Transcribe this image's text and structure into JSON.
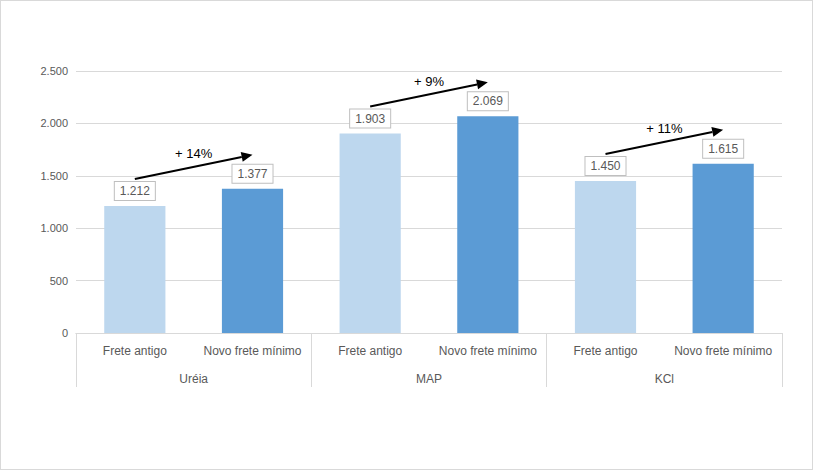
{
  "chart_data": {
    "type": "bar",
    "categories": [
      "Frete antigo",
      "Novo frete mínimo",
      "Frete antigo",
      "Novo frete mínimo",
      "Frete antigo",
      "Novo frete mínimo"
    ],
    "category_groups": [
      "Uréia",
      "Uréia",
      "MAP",
      "MAP",
      "KCl",
      "KCl"
    ],
    "values": [
      1212,
      1377,
      1903,
      2069,
      1450,
      1615
    ],
    "value_labels": [
      "1.212",
      "1.377",
      "1.903",
      "2.069",
      "1.450",
      "1.615"
    ],
    "colors": [
      "#bdd7ee",
      "#5b9bd5",
      "#bdd7ee",
      "#5b9bd5",
      "#bdd7ee",
      "#5b9bd5"
    ],
    "data_labels": true,
    "ylim": [
      0,
      2500
    ],
    "yticks": [
      0,
      500,
      {
        "value": 1000,
        "label": "1.000"
      },
      {
        "value": 1500,
        "label": "1.500"
      },
      {
        "value": 2000,
        "label": "2.000"
      },
      {
        "value": 2500,
        "label": "2.500"
      }
    ],
    "grid": true,
    "annotations": [
      {
        "text": "+ 14%",
        "group": "Uréia"
      },
      {
        "text": "+ 9%",
        "group": "MAP"
      },
      {
        "text": "+ 11%",
        "group": "KCl"
      }
    ]
  }
}
